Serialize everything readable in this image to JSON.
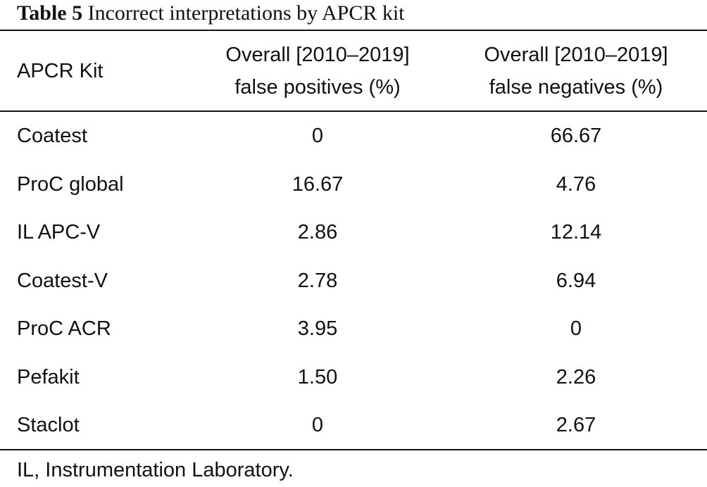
{
  "caption": {
    "label": "Table 5",
    "title": "Incorrect interpretations by APCR kit"
  },
  "table": {
    "headers": [
      {
        "lines": [
          "APCR Kit"
        ]
      },
      {
        "lines": [
          "Overall [2010–2019]",
          "false positives (%)"
        ]
      },
      {
        "lines": [
          "Overall [2010–2019]",
          "false negatives (%)"
        ]
      }
    ],
    "rows": [
      {
        "kit": "Coatest",
        "false_positives": "0",
        "false_negatives": "66.67"
      },
      {
        "kit": "ProC global",
        "false_positives": "16.67",
        "false_negatives": "4.76"
      },
      {
        "kit": "IL APC-V",
        "false_positives": "2.86",
        "false_negatives": "12.14"
      },
      {
        "kit": "Coatest-V",
        "false_positives": "2.78",
        "false_negatives": "6.94"
      },
      {
        "kit": "ProC ACR",
        "false_positives": "3.95",
        "false_negatives": "0"
      },
      {
        "kit": "Pefakit",
        "false_positives": "1.50",
        "false_negatives": "2.26"
      },
      {
        "kit": "Staclot",
        "false_positives": "0",
        "false_negatives": "2.67"
      }
    ]
  },
  "footnote": "IL, Instrumentation Laboratory."
}
